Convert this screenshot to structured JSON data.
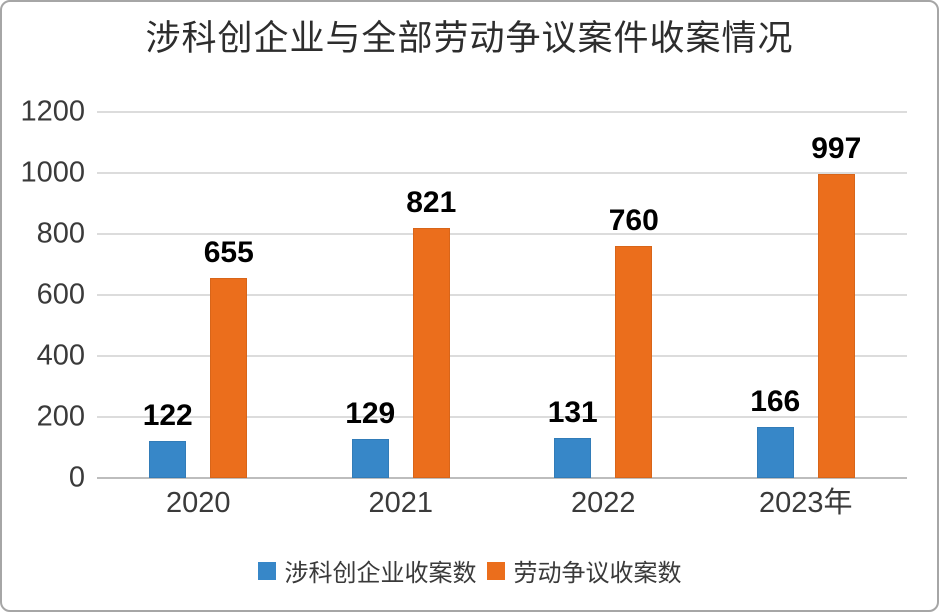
{
  "frame": {
    "background": "#ffffff",
    "border_color": "#a6a6a6"
  },
  "chart_data": {
    "type": "bar",
    "title": "涉科创企业与全部劳动争议案件收案情况",
    "categories": [
      "2020",
      "2021",
      "2022",
      "2023年"
    ],
    "series": [
      {
        "name": "涉科创企业收案数",
        "color": "#3787C8",
        "values": [
          122,
          129,
          131,
          166
        ]
      },
      {
        "name": "劳动争议收案数",
        "color": "#EB6E1C",
        "values": [
          655,
          821,
          760,
          997
        ]
      }
    ],
    "xlabel": "",
    "ylabel": "",
    "ylim": [
      0,
      1200
    ],
    "yticks": [
      0,
      200,
      400,
      600,
      800,
      1000,
      1200
    ],
    "grid": true,
    "data_labels": true,
    "legend_position": "bottom",
    "colors": {
      "grid": "#dcdcdc",
      "baseline": "#bdbdbd",
      "axis_text": "#3a3a3a",
      "data_label_text": "#000000",
      "title_text": "#2d2d2d"
    }
  }
}
